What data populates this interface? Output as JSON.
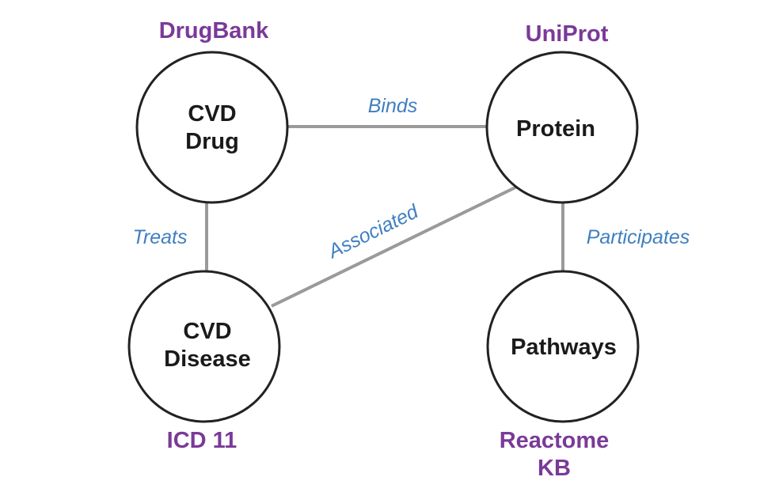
{
  "colors": {
    "node_stroke": "#222222",
    "edge_stroke": "#9a9a9a",
    "edge_label": "#3f7fc1",
    "source_label": "#7a3a98",
    "node_label": "#1a1a1a"
  },
  "nodes": {
    "drug": {
      "line1": "CVD",
      "line2": "Drug"
    },
    "protein": {
      "line1": "Protein"
    },
    "disease": {
      "line1": "CVD",
      "line2": "Disease"
    },
    "pathways": {
      "line1": "Pathways"
    }
  },
  "edges": {
    "binds": "Binds",
    "treats": "Treats",
    "associated": "Associated",
    "participates": "Participates"
  },
  "sources": {
    "drugbank": "DrugBank",
    "uniprot": "UniProt",
    "icd": "ICD 11",
    "reactome_line1": "Reactome",
    "reactome_line2": "KB"
  }
}
